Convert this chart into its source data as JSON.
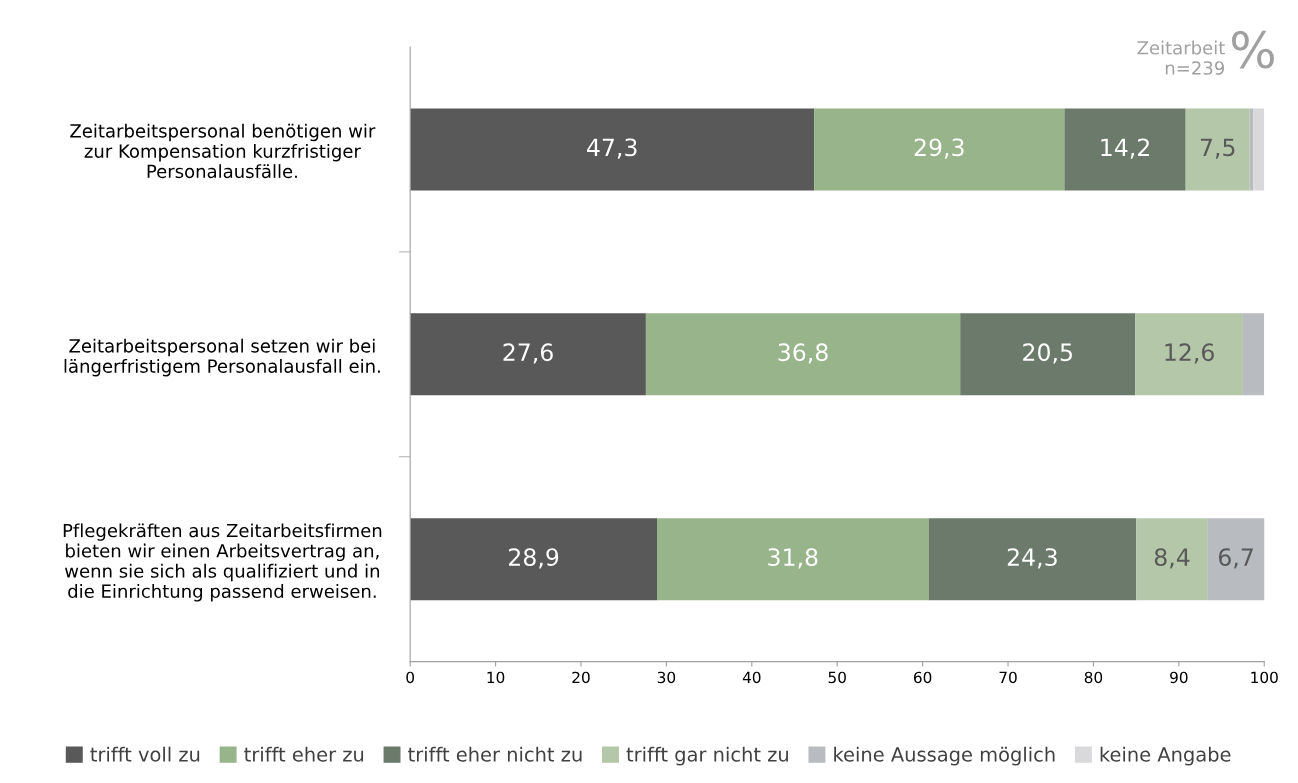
{
  "chart_data": {
    "type": "bar",
    "orientation": "horizontal",
    "stacked": true,
    "categories": [
      "Zeitarbeitspersonal benötigen wir\nzur Kompensation kurzfristiger\nPersonalausfälle.",
      "Zeitarbeitspersonal setzen wir bei\nlängerfristigem Personalausfall ein.",
      "Pflegekräften aus Zeitarbeitsfirmen\nbieten wir einen Arbeitsvertrag an,\nwenn sie sich als qualifiziert und in\ndie Einrichtung passend erweisen."
    ],
    "series": [
      {
        "name": "trifft voll zu",
        "color": "#595959",
        "values": [
          47.3,
          27.6,
          28.9
        ],
        "value_labels": [
          "47,3",
          "27,6",
          "28,9"
        ]
      },
      {
        "name": "trifft eher zu",
        "color": "#98b48a",
        "values": [
          29.3,
          36.8,
          31.8
        ],
        "value_labels": [
          "29,3",
          "36,8",
          "31,8"
        ]
      },
      {
        "name": "trifft eher nicht zu",
        "color": "#6b7a6b",
        "values": [
          14.2,
          20.5,
          24.3
        ],
        "value_labels": [
          "14,2",
          "20,5",
          "24,3"
        ]
      },
      {
        "name": "trifft gar nicht zu",
        "color": "#b4c7a8",
        "values": [
          7.5,
          12.6,
          8.4
        ],
        "value_labels": [
          "7,5",
          "12,6",
          "8,4"
        ]
      },
      {
        "name": "keine Aussage möglich",
        "color": "#b8bbc0",
        "values": [
          0.4,
          2.5,
          6.7
        ],
        "value_labels": [
          null,
          null,
          "6,7"
        ]
      },
      {
        "name": "keine Angabe",
        "color": "#d9d9dc",
        "values": [
          1.3,
          0,
          0
        ],
        "value_labels": [
          null,
          null,
          null
        ]
      }
    ],
    "xlim": [
      0,
      100
    ],
    "xticks": [
      0,
      10,
      20,
      30,
      40,
      50,
      60,
      70,
      80,
      90,
      100
    ],
    "grid": false,
    "legend": "bottom",
    "annotations": [
      "Zeitarbeit\nn=239",
      "%"
    ]
  }
}
